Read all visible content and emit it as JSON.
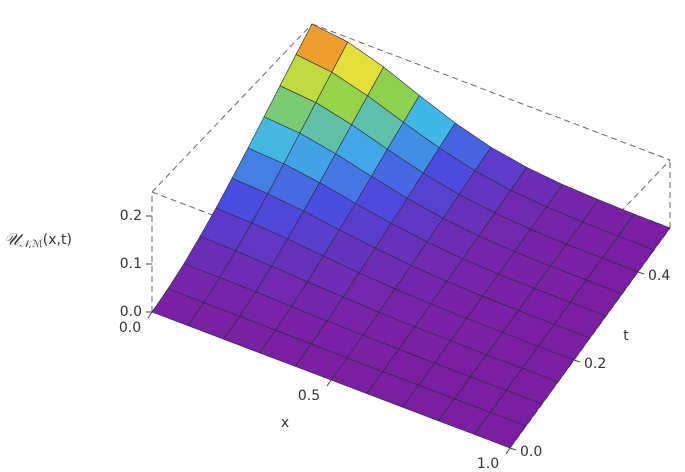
{
  "chart_data": {
    "type": "surface",
    "xlabel": "x",
    "ylabel": "t",
    "zlabel": {
      "base": "𝒰",
      "sub": "𝒩,ℳ",
      "rest": "(x,t)"
    },
    "x": [
      0,
      0.1,
      0.2,
      0.3,
      0.4,
      0.5,
      0.6,
      0.7,
      0.8,
      0.9,
      1
    ],
    "y": [
      0,
      0.05,
      0.1,
      0.15,
      0.2,
      0.25,
      0.3,
      0.35,
      0.4,
      0.45,
      0.5
    ],
    "z": [
      [
        0,
        0,
        0,
        0,
        0,
        0,
        0,
        0,
        0,
        0,
        0
      ],
      [
        0.003,
        0.002,
        0.002,
        0.001,
        0.001,
        0,
        0,
        0,
        0,
        0,
        0
      ],
      [
        0.01,
        0.009,
        0.008,
        0.005,
        0.003,
        0.002,
        0.001,
        0,
        0,
        0,
        0
      ],
      [
        0.023,
        0.021,
        0.017,
        0.012,
        0.008,
        0.004,
        0.002,
        0.001,
        0,
        0,
        0
      ],
      [
        0.04,
        0.037,
        0.031,
        0.022,
        0.014,
        0.008,
        0.004,
        0.002,
        0.001,
        0,
        0
      ],
      [
        0.063,
        0.058,
        0.048,
        0.034,
        0.022,
        0.012,
        0.006,
        0.002,
        0.001,
        0,
        0
      ],
      [
        0.09,
        0.084,
        0.069,
        0.049,
        0.031,
        0.017,
        0.008,
        0.003,
        0.001,
        0,
        0
      ],
      [
        0.123,
        0.115,
        0.094,
        0.067,
        0.042,
        0.023,
        0.011,
        0.005,
        0.002,
        0.001,
        0
      ],
      [
        0.16,
        0.15,
        0.123,
        0.088,
        0.055,
        0.03,
        0.015,
        0.006,
        0.002,
        0.001,
        0
      ],
      [
        0.203,
        0.189,
        0.155,
        0.111,
        0.07,
        0.038,
        0.018,
        0.008,
        0.003,
        0.001,
        0
      ],
      [
        0.25,
        0.234,
        0.192,
        0.137,
        0.086,
        0.047,
        0.023,
        0.01,
        0.004,
        0.001,
        0
      ]
    ],
    "xlim": [
      0,
      1
    ],
    "ylim": [
      0,
      0.5
    ],
    "zlim": [
      0,
      0.25
    ],
    "xticks": [
      {
        "value": 0,
        "label": "0.0"
      },
      0.5,
      {
        "value": 1,
        "label": "1.0"
      }
    ],
    "yticks": [
      {
        "value": 0,
        "label": "0.0"
      },
      0.2,
      0.4
    ],
    "zticks": [
      {
        "value": 0,
        "label": "0.0"
      },
      0.1,
      0.2
    ],
    "colormap": [
      "#7a1fa2",
      "#4a4de0",
      "#3fb6e8",
      "#8fd24a",
      "#f2e23a",
      "#e8301e"
    ]
  }
}
